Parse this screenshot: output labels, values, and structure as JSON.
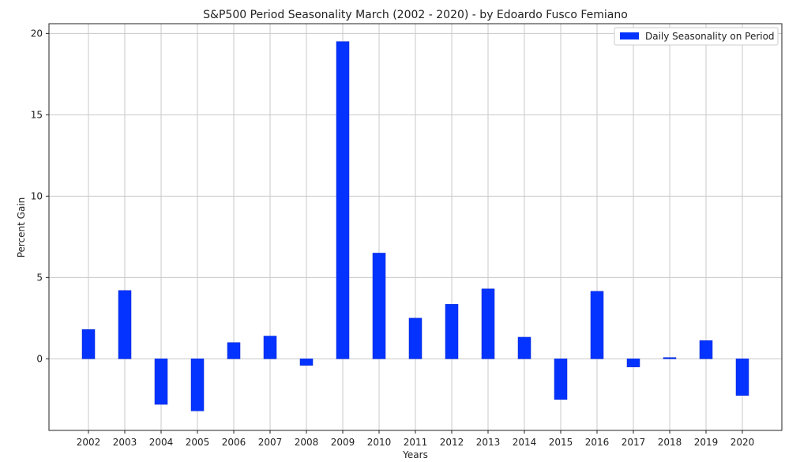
{
  "chart_data": {
    "type": "bar",
    "title": "S&P500 Period Seasonality March (2002 - 2020)  - by Edoardo Fusco Femiano",
    "xlabel": "Years",
    "ylabel": "Percent Gain",
    "categories": [
      "2002",
      "2003",
      "2004",
      "2005",
      "2006",
      "2007",
      "2008",
      "2009",
      "2010",
      "2011",
      "2012",
      "2013",
      "2014",
      "2015",
      "2016",
      "2017",
      "2018",
      "2019",
      "2020"
    ],
    "series": [
      {
        "name": "Daily Seasonality on Period",
        "color": "#0433ff",
        "values": [
          1.8,
          4.2,
          -2.8,
          -3.2,
          1.0,
          1.4,
          -0.4,
          19.5,
          6.5,
          2.5,
          3.35,
          4.3,
          1.33,
          -2.5,
          4.15,
          -0.5,
          0.08,
          1.12,
          -2.25
        ]
      }
    ],
    "yticks": [
      0,
      5,
      10,
      15,
      20
    ],
    "ylim": [
      -4.4,
      20.6
    ],
    "grid": true,
    "legend_position": "top-right"
  }
}
